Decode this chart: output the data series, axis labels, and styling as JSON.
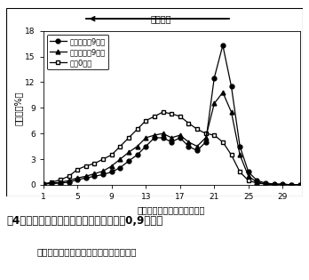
{
  "title_arrow": "分子量大",
  "ylabel": "経含量（%）",
  "xlabel": "リテンション・タイム（分）",
  "caption_line1": "围4４　果肉ペクチンの分子量分布（贯薹0,9日目）",
  "caption_line2": "遅く出現するピークが高いほど低分子化",
  "legend": [
    "低湿区贯薹9日目",
    "高湿区贯薹9日目",
    "贯薹0日目"
  ],
  "xlim": [
    1,
    31
  ],
  "ylim": [
    0,
    18
  ],
  "xticks": [
    1,
    5,
    9,
    13,
    17,
    21,
    25,
    29
  ],
  "yticks": [
    0,
    3,
    6,
    9,
    12,
    15,
    18
  ],
  "x": [
    1,
    2,
    3,
    4,
    5,
    6,
    7,
    8,
    9,
    10,
    11,
    12,
    13,
    14,
    15,
    16,
    17,
    18,
    19,
    20,
    21,
    22,
    23,
    24,
    25,
    26,
    27,
    28,
    29,
    30,
    31
  ],
  "series1": [
    0.1,
    0.15,
    0.2,
    0.3,
    0.6,
    0.8,
    1.0,
    1.2,
    1.5,
    2.0,
    2.8,
    3.5,
    4.5,
    5.5,
    5.5,
    5.0,
    5.5,
    4.5,
    4.0,
    5.0,
    12.5,
    16.3,
    11.5,
    4.5,
    1.5,
    0.5,
    0.2,
    0.1,
    0.1,
    0.0,
    0.0
  ],
  "series2": [
    0.1,
    0.2,
    0.3,
    0.5,
    0.8,
    1.0,
    1.3,
    1.6,
    2.2,
    3.0,
    3.8,
    4.5,
    5.5,
    5.8,
    6.0,
    5.5,
    5.8,
    5.0,
    4.5,
    5.5,
    9.5,
    10.8,
    8.5,
    3.5,
    1.0,
    0.3,
    0.1,
    0.05,
    0.0,
    0.0,
    0.0
  ],
  "series3": [
    0.1,
    0.3,
    0.6,
    1.0,
    1.8,
    2.2,
    2.5,
    3.0,
    3.5,
    4.5,
    5.5,
    6.5,
    7.5,
    8.0,
    8.5,
    8.3,
    8.0,
    7.2,
    6.5,
    6.0,
    5.8,
    5.0,
    3.5,
    1.5,
    0.5,
    0.2,
    0.1,
    0.0,
    0.0,
    0.0,
    0.0
  ],
  "bg_color": "#ffffff",
  "outer_border_color": "#000000",
  "line_color": "#000000",
  "arrow_lw": 1.5,
  "line_lw": 0.9,
  "marker_size": 3.5,
  "legend_fontsize": 6.0,
  "axis_fontsize": 7.0,
  "tick_fontsize": 6.5,
  "caption1_fontsize": 8.5,
  "caption2_fontsize": 7.5
}
